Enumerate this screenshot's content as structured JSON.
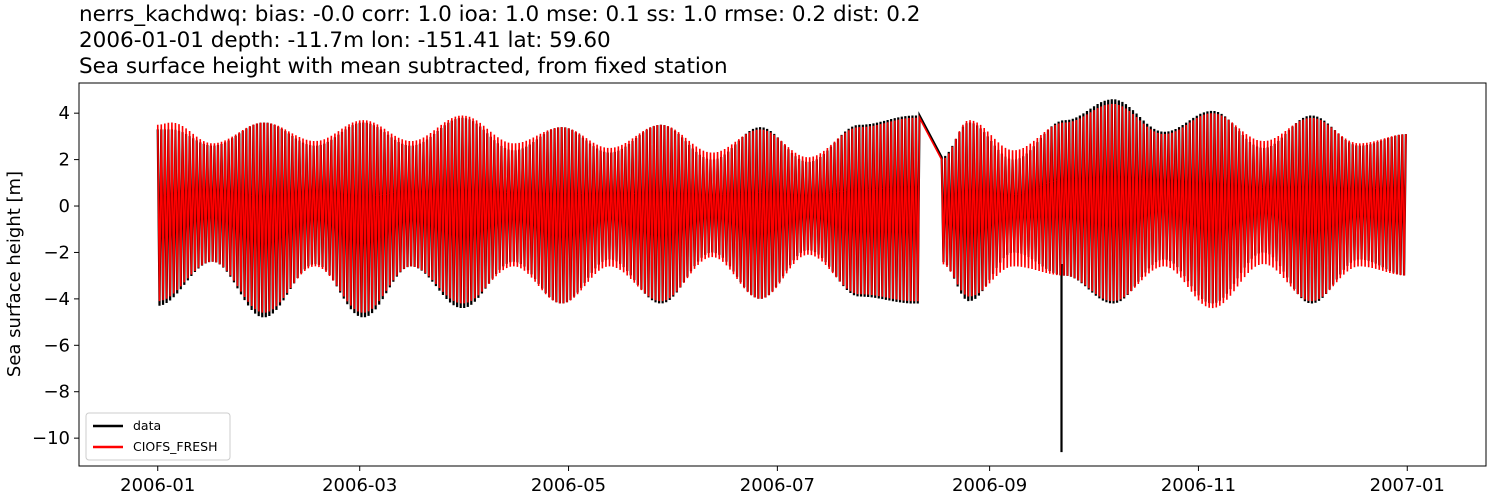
{
  "chart_data": {
    "type": "line",
    "title": [
      "nerrs_kachdwq: bias: -0.0  corr: 1.0  ioa: 1.0  mse: 0.1  ss: 1.0  rmse: 0.2  dist: 0.2",
      "2006-01-01 depth: -11.7m lon: -151.41 lat: 59.60",
      "Sea surface height with mean subtracted, from fixed station"
    ],
    "xlabel": "",
    "ylabel": "Sea surface height [m]",
    "xlim": [
      "2005-12-09",
      "2007-01-24"
    ],
    "ylim": [
      -11.2,
      5.3
    ],
    "x_ticks": [
      "2006-01",
      "2006-03",
      "2006-05",
      "2006-07",
      "2006-09",
      "2006-11",
      "2007-01"
    ],
    "y_ticks": [
      4,
      2,
      0,
      -2,
      -4,
      -6,
      -8,
      -10
    ],
    "y_tick_labels": [
      "4",
      "2",
      "0",
      "−2",
      "−4",
      "−6",
      "−8",
      "−10"
    ],
    "legend": {
      "placement": "lower-left",
      "entries": [
        "data",
        "CIOFS_FRESH"
      ]
    },
    "grid": false,
    "x_range": [
      "2006-01-01",
      "2007-01-01"
    ],
    "gap": [
      "2006-08-12",
      "2006-08-18"
    ],
    "spike": {
      "x": "2006-09-22",
      "y": -10.6
    },
    "series": [
      {
        "name": "data",
        "color": "#000000",
        "envelope_max": [
          [
            "2006-01-01",
            3.3
          ],
          [
            "2006-01-05",
            3.3
          ],
          [
            "2006-01-17",
            2.6
          ],
          [
            "2006-02-01",
            3.6
          ],
          [
            "2006-02-16",
            2.6
          ],
          [
            "2006-03-02",
            3.6
          ],
          [
            "2006-03-16",
            2.6
          ],
          [
            "2006-03-31",
            3.8
          ],
          [
            "2006-04-15",
            2.4
          ],
          [
            "2006-04-29",
            3.4
          ],
          [
            "2006-05-13",
            2.3
          ],
          [
            "2006-05-28",
            3.5
          ],
          [
            "2006-06-12",
            2.0
          ],
          [
            "2006-06-26",
            3.4
          ],
          [
            "2006-07-10",
            1.9
          ],
          [
            "2006-07-25",
            3.5
          ],
          [
            "2006-08-10",
            3.9
          ],
          [
            "2006-08-12",
            3.9
          ]
        ],
        "envelope_min": [
          [
            "2006-01-01",
            -4.3
          ],
          [
            "2006-01-17",
            -2.4
          ],
          [
            "2006-02-01",
            -4.8
          ],
          [
            "2006-02-16",
            -2.5
          ],
          [
            "2006-03-02",
            -4.8
          ],
          [
            "2006-03-16",
            -2.6
          ],
          [
            "2006-03-31",
            -4.4
          ],
          [
            "2006-04-15",
            -2.4
          ],
          [
            "2006-04-29",
            -4.2
          ],
          [
            "2006-05-13",
            -2.3
          ],
          [
            "2006-05-28",
            -4.2
          ],
          [
            "2006-06-12",
            -2.0
          ],
          [
            "2006-06-26",
            -4.0
          ],
          [
            "2006-07-10",
            -1.9
          ],
          [
            "2006-07-25",
            -3.9
          ],
          [
            "2006-08-10",
            -4.2
          ],
          [
            "2006-08-12",
            -4.2
          ]
        ],
        "envelope_max_after": [
          [
            "2006-08-18",
            2.1
          ],
          [
            "2006-08-26",
            3.6
          ],
          [
            "2006-09-08",
            2.0
          ],
          [
            "2006-09-23",
            3.7
          ],
          [
            "2006-10-07",
            4.6
          ],
          [
            "2006-10-22",
            3.2
          ],
          [
            "2006-11-05",
            4.1
          ],
          [
            "2006-11-20",
            2.5
          ],
          [
            "2006-12-04",
            3.9
          ],
          [
            "2006-12-18",
            2.6
          ],
          [
            "2007-01-01",
            3.1
          ]
        ],
        "envelope_min_after": [
          [
            "2006-08-18",
            -2.4
          ],
          [
            "2006-08-26",
            -4.1
          ],
          [
            "2006-09-08",
            -2.0
          ],
          [
            "2006-09-23",
            -3.0
          ],
          [
            "2006-10-07",
            -4.2
          ],
          [
            "2006-10-22",
            -2.3
          ],
          [
            "2006-11-05",
            -4.2
          ],
          [
            "2006-11-20",
            -2.0
          ],
          [
            "2006-12-04",
            -4.2
          ],
          [
            "2006-12-18",
            -2.3
          ],
          [
            "2007-01-01",
            -3.0
          ]
        ]
      },
      {
        "name": "CIOFS_FRESH",
        "color": "#ff0000",
        "envelope_max": [
          [
            "2006-01-01",
            3.5
          ],
          [
            "2006-01-05",
            3.6
          ],
          [
            "2006-01-17",
            2.7
          ],
          [
            "2006-02-01",
            3.6
          ],
          [
            "2006-02-16",
            2.8
          ],
          [
            "2006-03-02",
            3.7
          ],
          [
            "2006-03-16",
            2.8
          ],
          [
            "2006-03-31",
            3.9
          ],
          [
            "2006-04-15",
            2.7
          ],
          [
            "2006-04-29",
            3.4
          ],
          [
            "2006-05-13",
            2.5
          ],
          [
            "2006-05-28",
            3.5
          ],
          [
            "2006-06-12",
            2.3
          ],
          [
            "2006-06-26",
            3.3
          ],
          [
            "2006-07-10",
            2.1
          ],
          [
            "2006-07-25",
            3.4
          ],
          [
            "2006-08-10",
            3.8
          ],
          [
            "2006-08-12",
            3.8
          ]
        ],
        "envelope_min": [
          [
            "2006-01-01",
            -4.1
          ],
          [
            "2006-01-17",
            -2.4
          ],
          [
            "2006-02-01",
            -4.6
          ],
          [
            "2006-02-16",
            -2.6
          ],
          [
            "2006-03-02",
            -4.6
          ],
          [
            "2006-03-16",
            -2.6
          ],
          [
            "2006-03-31",
            -4.2
          ],
          [
            "2006-04-15",
            -2.6
          ],
          [
            "2006-04-29",
            -4.2
          ],
          [
            "2006-05-13",
            -2.6
          ],
          [
            "2006-05-28",
            -4.1
          ],
          [
            "2006-06-12",
            -2.2
          ],
          [
            "2006-06-26",
            -4.0
          ],
          [
            "2006-07-10",
            -2.1
          ],
          [
            "2006-07-25",
            -3.8
          ],
          [
            "2006-08-10",
            -4.1
          ],
          [
            "2006-08-12",
            -4.1
          ]
        ],
        "envelope_max_after": [
          [
            "2006-08-18",
            2.0
          ],
          [
            "2006-08-26",
            3.7
          ],
          [
            "2006-09-08",
            2.4
          ],
          [
            "2006-09-23",
            3.6
          ],
          [
            "2006-10-07",
            4.4
          ],
          [
            "2006-10-22",
            3.1
          ],
          [
            "2006-11-05",
            4.0
          ],
          [
            "2006-11-20",
            2.8
          ],
          [
            "2006-12-04",
            3.8
          ],
          [
            "2006-12-18",
            2.7
          ],
          [
            "2007-01-01",
            3.1
          ]
        ],
        "envelope_min_after": [
          [
            "2006-08-18",
            -2.5
          ],
          [
            "2006-08-26",
            -3.9
          ],
          [
            "2006-09-08",
            -2.6
          ],
          [
            "2006-09-23",
            -3.0
          ],
          [
            "2006-10-07",
            -4.1
          ],
          [
            "2006-10-22",
            -2.6
          ],
          [
            "2006-11-05",
            -4.4
          ],
          [
            "2006-11-20",
            -2.5
          ],
          [
            "2006-12-04",
            -4.1
          ],
          [
            "2006-12-18",
            -2.6
          ],
          [
            "2007-01-01",
            -3.0
          ]
        ]
      }
    ]
  }
}
